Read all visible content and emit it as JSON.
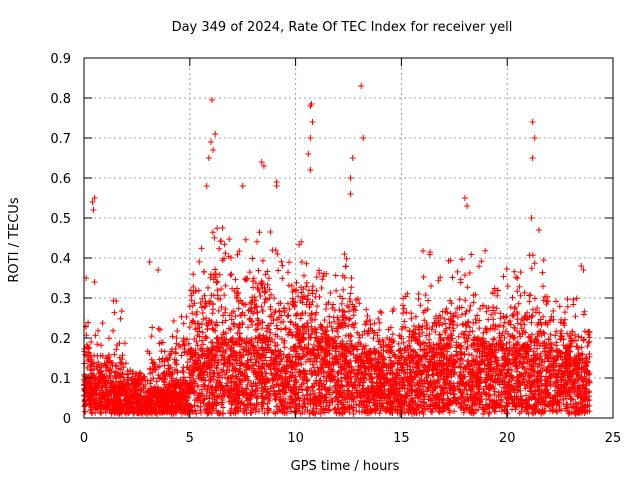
{
  "chart_data": {
    "type": "scatter",
    "title": "Day 349 of 2024, Rate Of TEC Index for receiver yell",
    "xlabel": "GPS time / hours",
    "ylabel": "ROTI / TECUs",
    "xlim": [
      0,
      25
    ],
    "ylim": [
      0,
      0.9
    ],
    "xticks": [
      0,
      5,
      10,
      15,
      20,
      25
    ],
    "yticks": [
      0,
      0.1,
      0.2,
      0.3,
      0.4,
      0.5,
      0.6,
      0.7,
      0.8,
      0.9
    ],
    "grid": true,
    "marker": "+",
    "color": "#ff0000",
    "x_range_of_data": [
      0,
      23.9
    ],
    "highlight_points": [
      {
        "x": 0.4,
        "y": 0.54
      },
      {
        "x": 0.45,
        "y": 0.52
      },
      {
        "x": 0.5,
        "y": 0.55
      },
      {
        "x": 0.1,
        "y": 0.35
      },
      {
        "x": 0.5,
        "y": 0.34
      },
      {
        "x": 3.1,
        "y": 0.39
      },
      {
        "x": 3.5,
        "y": 0.37
      },
      {
        "x": 5.9,
        "y": 0.65
      },
      {
        "x": 6.0,
        "y": 0.69
      },
      {
        "x": 6.1,
        "y": 0.67
      },
      {
        "x": 5.8,
        "y": 0.58
      },
      {
        "x": 6.2,
        "y": 0.71
      },
      {
        "x": 6.05,
        "y": 0.795
      },
      {
        "x": 7.5,
        "y": 0.58
      },
      {
        "x": 8.4,
        "y": 0.64
      },
      {
        "x": 8.5,
        "y": 0.63
      },
      {
        "x": 9.1,
        "y": 0.59
      },
      {
        "x": 9.1,
        "y": 0.58
      },
      {
        "x": 10.7,
        "y": 0.78
      },
      {
        "x": 10.75,
        "y": 0.785
      },
      {
        "x": 10.8,
        "y": 0.74
      },
      {
        "x": 10.7,
        "y": 0.7
      },
      {
        "x": 10.6,
        "y": 0.66
      },
      {
        "x": 10.7,
        "y": 0.62
      },
      {
        "x": 12.7,
        "y": 0.65
      },
      {
        "x": 12.6,
        "y": 0.6
      },
      {
        "x": 12.6,
        "y": 0.56
      },
      {
        "x": 13.1,
        "y": 0.83
      },
      {
        "x": 13.2,
        "y": 0.7
      },
      {
        "x": 18.0,
        "y": 0.55
      },
      {
        "x": 18.1,
        "y": 0.53
      },
      {
        "x": 21.2,
        "y": 0.74
      },
      {
        "x": 21.3,
        "y": 0.7
      },
      {
        "x": 21.2,
        "y": 0.65
      },
      {
        "x": 21.15,
        "y": 0.5
      },
      {
        "x": 21.5,
        "y": 0.47
      },
      {
        "x": 23.5,
        "y": 0.38
      },
      {
        "x": 23.6,
        "y": 0.37
      }
    ],
    "density_profile": [
      {
        "x0": 0,
        "x1": 1,
        "base": 0.06,
        "spread": 0.12,
        "max": 0.24
      },
      {
        "x0": 1,
        "x1": 2,
        "base": 0.05,
        "spread": 0.1,
        "max": 0.3
      },
      {
        "x0": 2,
        "x1": 3,
        "base": 0.03,
        "spread": 0.08,
        "max": 0.12
      },
      {
        "x0": 3,
        "x1": 4,
        "base": 0.04,
        "spread": 0.1,
        "max": 0.25
      },
      {
        "x0": 4,
        "x1": 5,
        "base": 0.05,
        "spread": 0.14,
        "max": 0.27
      },
      {
        "x0": 5,
        "x1": 6,
        "base": 0.1,
        "spread": 0.22,
        "max": 0.45
      },
      {
        "x0": 6,
        "x1": 7,
        "base": 0.12,
        "spread": 0.24,
        "max": 0.48
      },
      {
        "x0": 7,
        "x1": 8,
        "base": 0.12,
        "spread": 0.22,
        "max": 0.45
      },
      {
        "x0": 8,
        "x1": 9,
        "base": 0.12,
        "spread": 0.22,
        "max": 0.47
      },
      {
        "x0": 9,
        "x1": 10,
        "base": 0.1,
        "spread": 0.18,
        "max": 0.42
      },
      {
        "x0": 10,
        "x1": 11,
        "base": 0.14,
        "spread": 0.18,
        "max": 0.45
      },
      {
        "x0": 11,
        "x1": 12,
        "base": 0.12,
        "spread": 0.16,
        "max": 0.4
      },
      {
        "x0": 12,
        "x1": 13,
        "base": 0.11,
        "spread": 0.18,
        "max": 0.42
      },
      {
        "x0": 13,
        "x1": 14,
        "base": 0.1,
        "spread": 0.14,
        "max": 0.3
      },
      {
        "x0": 14,
        "x1": 15,
        "base": 0.08,
        "spread": 0.12,
        "max": 0.28
      },
      {
        "x0": 15,
        "x1": 16,
        "base": 0.09,
        "spread": 0.14,
        "max": 0.33
      },
      {
        "x0": 16,
        "x1": 17,
        "base": 0.11,
        "spread": 0.16,
        "max": 0.42
      },
      {
        "x0": 17,
        "x1": 18,
        "base": 0.11,
        "spread": 0.16,
        "max": 0.4
      },
      {
        "x0": 18,
        "x1": 19,
        "base": 0.12,
        "spread": 0.16,
        "max": 0.42
      },
      {
        "x0": 19,
        "x1": 20,
        "base": 0.11,
        "spread": 0.16,
        "max": 0.38
      },
      {
        "x0": 20,
        "x1": 21,
        "base": 0.11,
        "spread": 0.15,
        "max": 0.37
      },
      {
        "x0": 21,
        "x1": 22,
        "base": 0.12,
        "spread": 0.18,
        "max": 0.42
      },
      {
        "x0": 22,
        "x1": 23,
        "base": 0.1,
        "spread": 0.14,
        "max": 0.3
      },
      {
        "x0": 23,
        "x1": 23.9,
        "base": 0.09,
        "spread": 0.12,
        "max": 0.3
      }
    ]
  }
}
